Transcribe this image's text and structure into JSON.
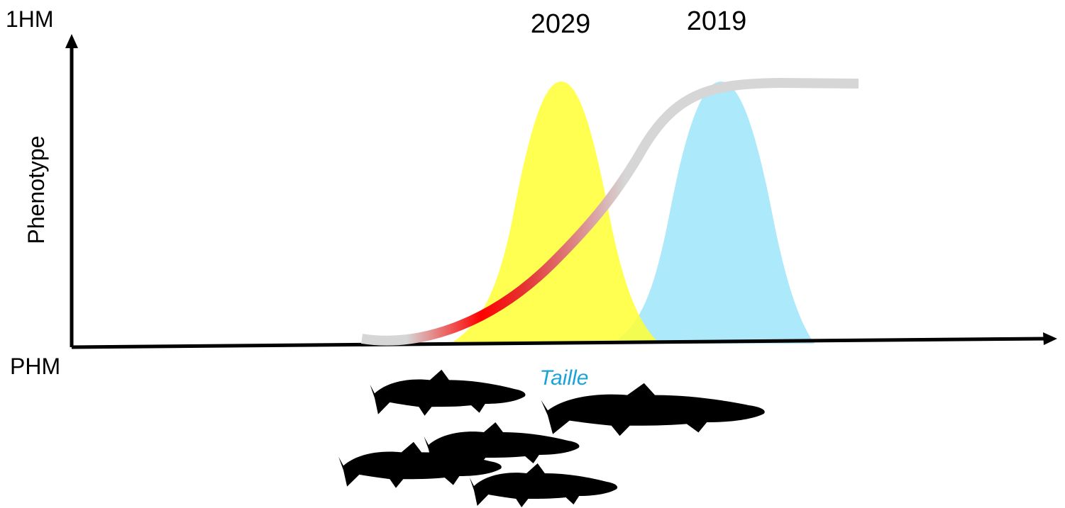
{
  "axes": {
    "y_top_label": "1HM",
    "y_bottom_label": "PHM",
    "y_title": "Phenotype",
    "x_title": "Taille"
  },
  "distributions": [
    {
      "label": "2029",
      "color": "#ffff33"
    },
    {
      "label": "2019",
      "color": "#a8e8fa"
    }
  ],
  "colors": {
    "curve_neutral": "#d6d6d6",
    "curve_highlight": "#ff0000",
    "x_title": "#1aa3d9",
    "silhouettes": "#000000"
  }
}
